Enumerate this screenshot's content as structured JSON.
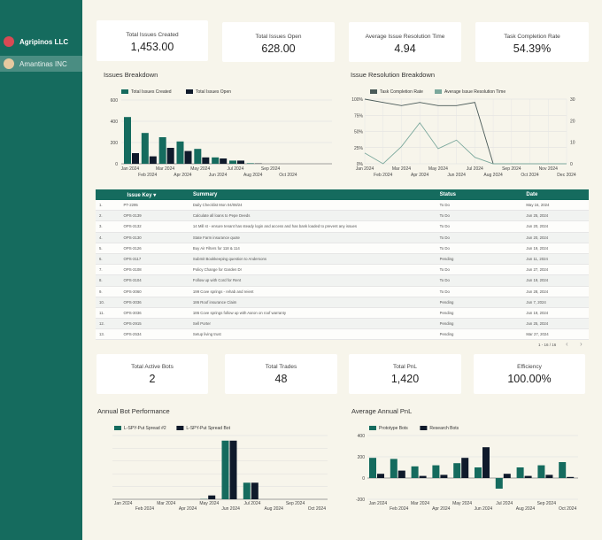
{
  "sidebar": {
    "orgs": [
      {
        "name": "Agripinos LLC",
        "avatar_color": "#d94a54"
      },
      {
        "name": "Amantinas INC",
        "avatar_color": "#e7c9a0"
      }
    ]
  },
  "kpis": {
    "total_created": {
      "label": "Total Issues Created",
      "value": "1,453.00"
    },
    "total_open": {
      "label": "Total Issues Open",
      "value": "628.00"
    },
    "avg_resolution": {
      "label": "Average Issue Resolution Time",
      "value": "4.94"
    },
    "completion_rate": {
      "label": "Task Completion Rate",
      "value": "54.39%"
    }
  },
  "kpis2": {
    "active_bots": {
      "label": "Total Active Bots",
      "value": "2"
    },
    "total_trades": {
      "label": "Total Trades",
      "value": "48"
    },
    "total_pnl": {
      "label": "Total PnL",
      "value": "1,420"
    },
    "efficiency": {
      "label": "Efficiency",
      "value": "100.00%"
    }
  },
  "table": {
    "headers": {
      "key": "Issue Key",
      "sort_arrow": "▾",
      "summary": "Summary",
      "status": "Status",
      "date": "Date"
    },
    "rows": [
      {
        "n": "1.",
        "key": "PT-2295",
        "summary": "Daily Checklist Mon 04/08/24",
        "status": "To Do",
        "date": "May 16, 2024"
      },
      {
        "n": "2.",
        "key": "OPS-3139",
        "summary": "Calculate all loans to Pepe Deeds",
        "status": "To Do",
        "date": "Jun 25, 2024"
      },
      {
        "n": "3.",
        "key": "OPS-3132",
        "summary": "14 Mill st - ensure tenant has steady login and access and has bank loaded to prevent any issues",
        "status": "To Do",
        "date": "Jun 20, 2024"
      },
      {
        "n": "4.",
        "key": "OPS-3130",
        "summary": "State Farm insurance quote",
        "status": "To Do",
        "date": "Jun 20, 2024"
      },
      {
        "n": "5.",
        "key": "OPS-3126",
        "summary": "Buy Air Filters for 118 & 114",
        "status": "To Do",
        "date": "Jun 19, 2024"
      },
      {
        "n": "6.",
        "key": "OPS-3117",
        "summary": "Submit Bookkeeping question to Andersons",
        "status": "Pending",
        "date": "Jun 11, 2024"
      },
      {
        "n": "7.",
        "key": "OPS-3108",
        "summary": "Policy Change for Garden Dr",
        "status": "To Do",
        "date": "Jun 27, 2024"
      },
      {
        "n": "8.",
        "key": "OPS-3104",
        "summary": "Follow up with Cord for Rent",
        "status": "To Do",
        "date": "Jun 19, 2024"
      },
      {
        "n": "9.",
        "key": "OPS-3060",
        "summary": "199 Cove springs - rehab and reient",
        "status": "To Do",
        "date": "Jun 28, 2024"
      },
      {
        "n": "10.",
        "key": "OPS-3036",
        "summary": "186 Roof insurance Claim",
        "status": "Pending",
        "date": "Jun 7, 2024"
      },
      {
        "n": "11.",
        "key": "OPS-3036",
        "summary": "186 Cove springs follow up with Aaron on roof warranty",
        "status": "Pending",
        "date": "Jun 19, 2024"
      },
      {
        "n": "12.",
        "key": "OPS-2915",
        "summary": "Sell Porter",
        "status": "Pending",
        "date": "Jun 25, 2024"
      },
      {
        "n": "13.",
        "key": "OPS-2534",
        "summary": "Setup living trust",
        "status": "Pending",
        "date": "Mar 27, 2024"
      }
    ],
    "pager": "1 - 16 / 16",
    "prev_icon": "‹",
    "next_icon": "›"
  },
  "charts": {
    "issues_breakdown": {
      "title": "Issues Breakdown"
    },
    "resolution_breakdown": {
      "title": "Issue Resolution Breakdown"
    },
    "annual_bot": {
      "title": "Annual Bot Performance"
    },
    "annual_pnl": {
      "title": "Average Annual PnL"
    }
  },
  "colors": {
    "teal": "#156b5e",
    "dark": "#0f1a2b",
    "line_dark": "#4a5a58",
    "line_light": "#7ba89c"
  },
  "chart_data": [
    {
      "type": "bar",
      "title": "Issues Breakdown",
      "categories": [
        "Jan 2024",
        "Feb 2024",
        "Mar 2024",
        "Apr 2024",
        "May 2024",
        "Jun 2024",
        "Jul 2024",
        "Aug 2024",
        "Sep 2024",
        "Oct 2024",
        "Nov 2024",
        "Dec 2024"
      ],
      "x_tick_labels": [
        "Jan 2024",
        "Feb 2024",
        "Mar 2024",
        "Apr 2024",
        "May 2024",
        "Jun 2024",
        "Jul 2024",
        "Aug 2024",
        "Sep 2024",
        "Oct 2024"
      ],
      "series": [
        {
          "name": "Total Issues Created",
          "color": "#156b5e",
          "values": [
            440,
            290,
            250,
            210,
            140,
            60,
            30,
            5,
            0,
            0,
            0,
            0
          ]
        },
        {
          "name": "Total Issues Open",
          "color": "#0f1a2b",
          "values": [
            100,
            70,
            150,
            120,
            60,
            50,
            30,
            3,
            0,
            0,
            0,
            0
          ]
        }
      ],
      "ylim": [
        0,
        600
      ],
      "yticks": [
        0,
        200,
        400,
        600
      ],
      "legend": "top-left",
      "grid": true
    },
    {
      "type": "line",
      "title": "Issue Resolution Breakdown",
      "categories": [
        "Jan 2024",
        "Feb 2024",
        "Mar 2024",
        "Apr 2024",
        "May 2024",
        "Jun 2024",
        "Jul 2024",
        "Aug 2024",
        "Sep 2024",
        "Oct 2024",
        "Nov 2024",
        "Dec 2024"
      ],
      "series": [
        {
          "name": "Task Completion Rate",
          "color": "#4a5a58",
          "axis": "left",
          "values": [
            100,
            95,
            90,
            95,
            90,
            90,
            95,
            0,
            0,
            0,
            0,
            0
          ]
        },
        {
          "name": "Average Issue Resolution Time",
          "color": "#7ba89c",
          "axis": "right",
          "values": [
            5,
            0,
            8,
            19,
            7,
            11,
            3,
            0,
            0,
            0,
            0,
            0
          ]
        }
      ],
      "y_left": {
        "ticks": [
          "0%",
          "25%",
          "50%",
          "75%",
          "100%"
        ],
        "range": [
          0,
          100
        ]
      },
      "y_right": {
        "ticks": [
          "0",
          "10",
          "20",
          "30"
        ],
        "range": [
          0,
          30
        ]
      },
      "legend": "top",
      "grid": true
    },
    {
      "type": "bar",
      "title": "Annual Bot Performance",
      "categories": [
        "Jan 2024",
        "Feb 2024",
        "Mar 2024",
        "Apr 2024",
        "May 2024",
        "Jun 2024",
        "Jul 2024",
        "Aug 2024",
        "Sep 2024",
        "Oct 2024"
      ],
      "series": [
        {
          "name": "L-SPY-Put Spread #2",
          "color": "#156b5e",
          "values": [
            0,
            0,
            0,
            0,
            2,
            460,
            130,
            0,
            0,
            0
          ]
        },
        {
          "name": "L-SPY-Put Spread Bot",
          "color": "#0f1a2b",
          "values": [
            0,
            0,
            0,
            0,
            30,
            460,
            130,
            0,
            0,
            0
          ]
        }
      ],
      "legend": "top-left",
      "grid": true
    },
    {
      "type": "bar",
      "title": "Average Annual PnL",
      "categories": [
        "Jan 2024",
        "Feb 2024",
        "Mar 2024",
        "Apr 2024",
        "May 2024",
        "Jun 2024",
        "Jul 2024",
        "Aug 2024",
        "Sep 2024",
        "Oct 2024"
      ],
      "series": [
        {
          "name": "Prototype Bots",
          "color": "#156b5e",
          "values": [
            190,
            180,
            110,
            120,
            140,
            100,
            -100,
            100,
            120,
            150
          ]
        },
        {
          "name": "Research Bots",
          "color": "#0f1a2b",
          "values": [
            40,
            70,
            20,
            30,
            190,
            290,
            40,
            20,
            30,
            10
          ]
        }
      ],
      "ylim": [
        -200,
        400
      ],
      "yticks": [
        -200,
        0,
        200,
        400
      ],
      "legend": "top-left",
      "grid": true
    }
  ]
}
